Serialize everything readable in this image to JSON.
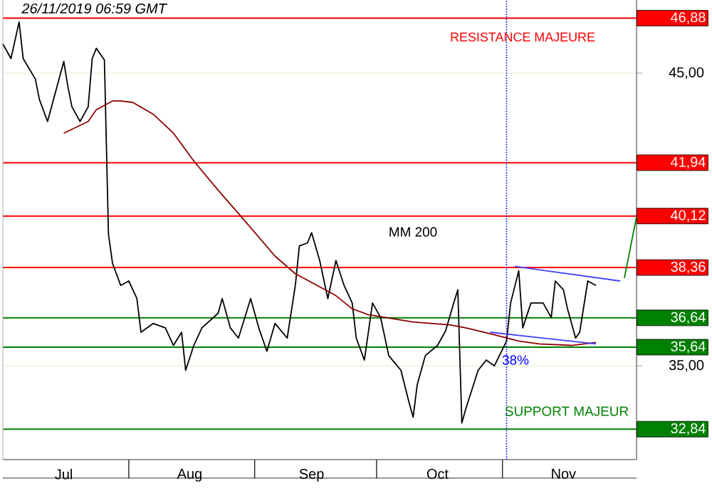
{
  "chart_data": {
    "type": "line",
    "xlim": [
      "2019-07-01",
      "2019-12-04"
    ],
    "ylim": [
      31.8,
      47.5
    ],
    "xticks": [
      {
        "value": "2019-07-16",
        "label": "Jul"
      },
      {
        "value": "2019-08-01",
        "label": null
      },
      {
        "value": "2019-08-16",
        "label": "Aug"
      },
      {
        "value": "2019-09-01",
        "label": null
      },
      {
        "value": "2019-09-15",
        "label": "Sep"
      },
      {
        "value": "2019-10-01",
        "label": null
      },
      {
        "value": "2019-10-16",
        "label": "Oct"
      },
      {
        "value": "2019-11-01",
        "label": null
      },
      {
        "value": "2019-11-16",
        "label": "Nov"
      }
    ],
    "yticks": [
      {
        "value": 35,
        "label": "35,00"
      },
      {
        "value": 40,
        "label": null
      },
      {
        "value": 45,
        "label": "45,00"
      }
    ],
    "grid": "y",
    "series": [
      {
        "color": "#000000",
        "x": [
          "2019-07-01",
          "2019-07-03",
          "2019-07-05",
          "2019-07-06",
          "2019-07-09",
          "2019-07-10",
          "2019-07-12",
          "2019-07-16",
          "2019-07-17",
          "2019-07-18",
          "2019-07-20",
          "2019-07-22",
          "2019-07-23",
          "2019-07-24",
          "2019-07-26",
          "2019-07-27",
          "2019-07-28",
          "2019-07-30",
          "2019-08-01",
          "2019-08-03",
          "2019-08-04",
          "2019-08-07",
          "2019-08-10",
          "2019-08-12",
          "2019-08-14",
          "2019-08-15",
          "2019-08-17",
          "2019-08-19",
          "2019-08-23",
          "2019-08-24",
          "2019-08-26",
          "2019-08-28",
          "2019-08-31",
          "2019-09-02",
          "2019-09-04",
          "2019-09-06",
          "2019-09-09",
          "2019-09-11",
          "2019-09-12",
          "2019-09-14",
          "2019-09-15",
          "2019-09-17",
          "2019-09-19",
          "2019-09-21",
          "2019-09-23",
          "2019-09-25",
          "2019-09-26",
          "2019-09-28",
          "2019-09-30",
          "2019-10-02",
          "2019-10-04",
          "2019-10-07",
          "2019-10-09",
          "2019-10-10",
          "2019-10-11",
          "2019-10-13",
          "2019-10-16",
          "2019-10-18",
          "2019-10-20",
          "2019-10-21",
          "2019-10-22",
          "2019-10-23",
          "2019-10-26",
          "2019-10-28",
          "2019-10-30",
          "2019-11-02",
          "2019-11-03",
          "2019-11-05",
          "2019-11-06",
          "2019-11-08",
          "2019-11-11",
          "2019-11-13",
          "2019-11-14",
          "2019-11-16",
          "2019-11-17",
          "2019-11-19",
          "2019-11-20",
          "2019-11-22",
          "2019-11-24"
        ],
        "values": [
          46.0,
          45.5,
          46.75,
          45.5,
          44.8,
          44.1,
          43.35,
          45.4,
          44.55,
          43.85,
          43.35,
          43.85,
          45.5,
          45.85,
          45.45,
          39.5,
          38.5,
          37.75,
          37.9,
          37.3,
          36.15,
          36.45,
          36.3,
          35.7,
          36.15,
          34.85,
          35.7,
          36.3,
          36.8,
          37.3,
          36.3,
          35.95,
          37.3,
          36.3,
          35.5,
          36.45,
          35.95,
          37.75,
          39.1,
          39.2,
          39.55,
          38.6,
          37.3,
          38.6,
          37.75,
          37.15,
          35.95,
          35.2,
          37.15,
          36.65,
          35.35,
          34.85,
          33.75,
          33.25,
          34.35,
          35.35,
          35.7,
          36.2,
          37.15,
          37.6,
          33.05,
          33.55,
          34.85,
          35.2,
          35.0,
          35.85,
          37.15,
          38.25,
          36.3,
          37.15,
          37.15,
          36.65,
          37.9,
          37.6,
          36.95,
          35.95,
          36.15,
          37.9,
          37.75
        ]
      },
      {
        "color": "#8b0000",
        "x": [
          "2019-07-16",
          "2019-07-22",
          "2019-07-24",
          "2019-07-28",
          "2019-07-30",
          "2019-08-02",
          "2019-08-07",
          "2019-08-12",
          "2019-08-17",
          "2019-08-23",
          "2019-08-29",
          "2019-09-06",
          "2019-09-11",
          "2019-09-15",
          "2019-09-21",
          "2019-09-25",
          "2019-09-29",
          "2019-10-10",
          "2019-10-19",
          "2019-10-23",
          "2019-10-29",
          "2019-11-05",
          "2019-11-10",
          "2019-11-18",
          "2019-11-24"
        ],
        "values": [
          42.95,
          43.35,
          43.75,
          44.05,
          44.05,
          44.0,
          43.6,
          42.95,
          42.0,
          41.0,
          40.05,
          38.75,
          38.15,
          37.85,
          37.4,
          36.95,
          36.75,
          36.5,
          36.4,
          36.3,
          36.1,
          35.85,
          35.75,
          35.7,
          35.8
        ]
      },
      {
        "color": "#4040ff",
        "x": [
          "2019-11-04",
          "2019-11-30"
        ],
        "values": [
          38.4,
          37.9
        ]
      },
      {
        "color": "#4040ff",
        "x": [
          "2019-10-29",
          "2019-11-24"
        ],
        "values": [
          36.15,
          35.75
        ]
      },
      {
        "color": "#008000",
        "x": [
          "2019-12-01",
          "2019-12-04"
        ],
        "values": [
          38.0,
          40.1
        ]
      }
    ],
    "ref_lines": [
      {
        "axis": "y",
        "value": 46.88,
        "label": "46,88",
        "color": "#ff0000"
      },
      {
        "axis": "y",
        "value": 41.94,
        "label": "41,94",
        "color": "#ff0000"
      },
      {
        "axis": "y",
        "value": 40.12,
        "label": "40,12",
        "color": "#ff0000"
      },
      {
        "axis": "y",
        "value": 38.36,
        "label": "38,36",
        "color": "#ff0000"
      },
      {
        "axis": "y",
        "value": 36.64,
        "label": "36,64",
        "color": "#008000"
      },
      {
        "axis": "y",
        "value": 35.64,
        "label": "35,64",
        "color": "#008000"
      },
      {
        "axis": "y",
        "value": 32.84,
        "label": "32,84",
        "color": "#008000"
      },
      {
        "axis": "x",
        "value": "2019-11-02",
        "color": "#0000ff",
        "line_style": "dotted"
      }
    ],
    "annotations": [
      "26/11/2019 06:59 GMT",
      "RESISTANCE MAJEURE",
      "MM 200",
      "38%",
      "SUPPORT MAJEUR"
    ]
  }
}
